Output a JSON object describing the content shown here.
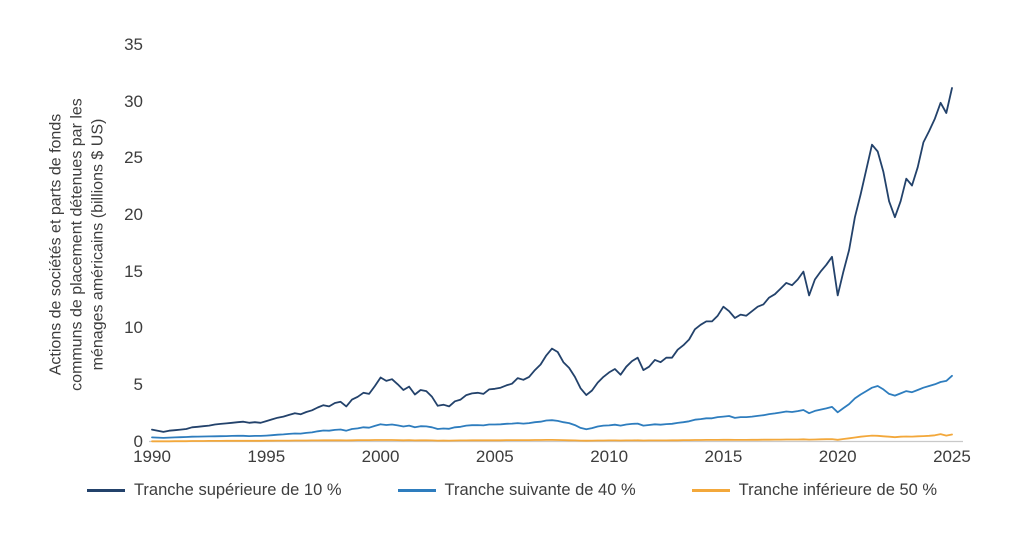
{
  "figure": {
    "y_axis_label_lines": [
      "Actions de sociétés et parts de fonds",
      "communs de placement détenues par les",
      "ménages américains (billions $ US)"
    ],
    "axis_line_color": "#c9c9c9",
    "text_color": "#3d3d3d",
    "background_color": "#ffffff"
  },
  "chart_data": {
    "type": "line",
    "title": "",
    "xlabel": "",
    "ylabel": "Actions de sociétés et parts de fonds communs de placement détenues par les ménages américains (billions $ US)",
    "x_start": 1990,
    "x_step": 0.25,
    "x_frequency": "quarterly",
    "xlim": [
      1990,
      2025.6
    ],
    "ylim": [
      0,
      35
    ],
    "x_ticks": [
      1990,
      1995,
      2000,
      2005,
      2010,
      2015,
      2020,
      2025
    ],
    "y_ticks": [
      0,
      5,
      10,
      15,
      20,
      25,
      30,
      35
    ],
    "grid": false,
    "legend_position": "bottom",
    "series": [
      {
        "name": "Tranche supérieure de 10 %",
        "color": "#23426b",
        "values": [
          1.05,
          0.95,
          0.85,
          0.95,
          1.0,
          1.05,
          1.1,
          1.25,
          1.3,
          1.35,
          1.4,
          1.5,
          1.55,
          1.6,
          1.65,
          1.7,
          1.75,
          1.65,
          1.7,
          1.65,
          1.8,
          1.95,
          2.1,
          2.2,
          2.35,
          2.5,
          2.4,
          2.6,
          2.75,
          3.0,
          3.2,
          3.1,
          3.4,
          3.5,
          3.1,
          3.7,
          3.95,
          4.3,
          4.2,
          4.9,
          5.65,
          5.35,
          5.5,
          5.05,
          4.55,
          4.85,
          4.15,
          4.55,
          4.45,
          3.95,
          3.15,
          3.25,
          3.1,
          3.55,
          3.7,
          4.1,
          4.25,
          4.3,
          4.2,
          4.6,
          4.65,
          4.75,
          4.95,
          5.1,
          5.6,
          5.45,
          5.7,
          6.3,
          6.8,
          7.6,
          8.2,
          7.9,
          7.0,
          6.5,
          5.7,
          4.7,
          4.1,
          4.5,
          5.2,
          5.7,
          6.1,
          6.4,
          5.9,
          6.6,
          7.1,
          7.4,
          6.3,
          6.6,
          7.2,
          7.0,
          7.4,
          7.4,
          8.1,
          8.5,
          9.0,
          9.9,
          10.3,
          10.6,
          10.6,
          11.1,
          11.9,
          11.5,
          10.9,
          11.2,
          11.1,
          11.5,
          11.9,
          12.1,
          12.7,
          13.0,
          13.5,
          14.0,
          13.8,
          14.3,
          15.0,
          12.9,
          14.3,
          15.0,
          15.6,
          16.3,
          12.9,
          15.0,
          16.9,
          19.8,
          21.8,
          24.0,
          26.2,
          25.6,
          23.8,
          21.2,
          19.8,
          21.2,
          23.2,
          22.6,
          24.2,
          26.4,
          27.4,
          28.5,
          29.9,
          29.0,
          31.2
        ]
      },
      {
        "name": "Tranche suivante de 40 %",
        "color": "#2e7dbe",
        "values": [
          0.36,
          0.34,
          0.32,
          0.34,
          0.36,
          0.38,
          0.4,
          0.42,
          0.43,
          0.44,
          0.45,
          0.46,
          0.47,
          0.48,
          0.49,
          0.5,
          0.5,
          0.48,
          0.49,
          0.49,
          0.52,
          0.56,
          0.6,
          0.63,
          0.67,
          0.71,
          0.7,
          0.76,
          0.8,
          0.9,
          0.97,
          0.95,
          1.02,
          1.06,
          0.95,
          1.1,
          1.16,
          1.25,
          1.22,
          1.38,
          1.52,
          1.46,
          1.5,
          1.42,
          1.32,
          1.4,
          1.25,
          1.35,
          1.33,
          1.25,
          1.1,
          1.15,
          1.12,
          1.25,
          1.3,
          1.4,
          1.44,
          1.45,
          1.42,
          1.5,
          1.5,
          1.52,
          1.56,
          1.58,
          1.62,
          1.58,
          1.62,
          1.7,
          1.75,
          1.85,
          1.88,
          1.82,
          1.7,
          1.62,
          1.45,
          1.2,
          1.08,
          1.18,
          1.32,
          1.4,
          1.42,
          1.48,
          1.4,
          1.5,
          1.55,
          1.58,
          1.4,
          1.46,
          1.52,
          1.48,
          1.54,
          1.56,
          1.64,
          1.7,
          1.78,
          1.92,
          1.98,
          2.05,
          2.05,
          2.15,
          2.2,
          2.25,
          2.08,
          2.15,
          2.15,
          2.2,
          2.26,
          2.32,
          2.42,
          2.48,
          2.56,
          2.65,
          2.6,
          2.68,
          2.78,
          2.5,
          2.7,
          2.82,
          2.92,
          3.05,
          2.58,
          2.95,
          3.3,
          3.8,
          4.15,
          4.45,
          4.75,
          4.9,
          4.6,
          4.2,
          4.05,
          4.25,
          4.45,
          4.35,
          4.55,
          4.75,
          4.9,
          5.05,
          5.25,
          5.35,
          5.8
        ]
      },
      {
        "name": "Tranche inférieure de 50 %",
        "color": "#f3a83b",
        "values": [
          0.02,
          0.02,
          0.02,
          0.02,
          0.03,
          0.03,
          0.03,
          0.04,
          0.04,
          0.04,
          0.05,
          0.05,
          0.05,
          0.06,
          0.06,
          0.06,
          0.06,
          0.06,
          0.06,
          0.06,
          0.07,
          0.07,
          0.08,
          0.08,
          0.08,
          0.09,
          0.09,
          0.09,
          0.1,
          0.1,
          0.11,
          0.11,
          0.11,
          0.11,
          0.1,
          0.11,
          0.12,
          0.12,
          0.12,
          0.13,
          0.13,
          0.13,
          0.13,
          0.12,
          0.11,
          0.12,
          0.1,
          0.11,
          0.11,
          0.1,
          0.08,
          0.09,
          0.08,
          0.09,
          0.1,
          0.1,
          0.11,
          0.11,
          0.11,
          0.11,
          0.11,
          0.11,
          0.12,
          0.12,
          0.12,
          0.12,
          0.12,
          0.13,
          0.13,
          0.14,
          0.14,
          0.13,
          0.12,
          0.11,
          0.1,
          0.08,
          0.07,
          0.08,
          0.09,
          0.09,
          0.1,
          0.1,
          0.09,
          0.1,
          0.1,
          0.11,
          0.09,
          0.1,
          0.1,
          0.1,
          0.1,
          0.11,
          0.11,
          0.12,
          0.12,
          0.13,
          0.13,
          0.14,
          0.14,
          0.14,
          0.15,
          0.15,
          0.14,
          0.14,
          0.14,
          0.15,
          0.15,
          0.16,
          0.16,
          0.17,
          0.17,
          0.18,
          0.18,
          0.18,
          0.19,
          0.17,
          0.18,
          0.19,
          0.2,
          0.21,
          0.15,
          0.22,
          0.28,
          0.35,
          0.42,
          0.48,
          0.52,
          0.5,
          0.46,
          0.42,
          0.38,
          0.42,
          0.44,
          0.43,
          0.46,
          0.48,
          0.5,
          0.55,
          0.65,
          0.52,
          0.62
        ]
      }
    ]
  }
}
